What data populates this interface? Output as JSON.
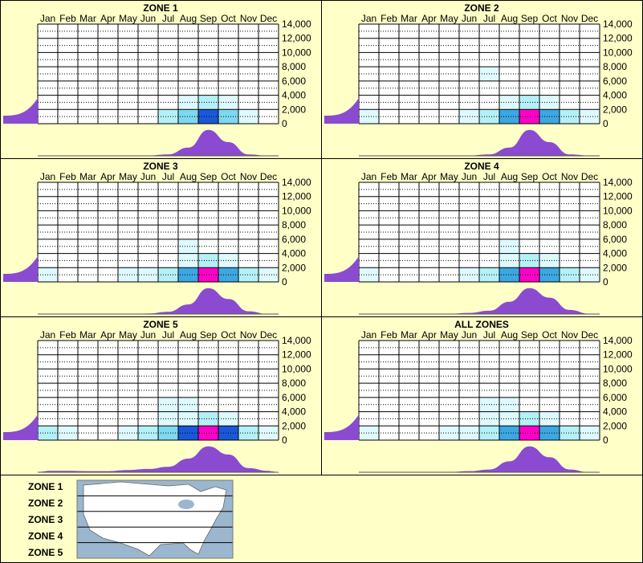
{
  "colors": {
    "background": "#ffffc8",
    "marginal": "#8a4bd0",
    "panel_border": "#000000",
    "scale": [
      "#ffffc8",
      "#dffaff",
      "#b4f0f8",
      "#7ed8ef",
      "#3ca7e0",
      "#1a58d8",
      "#0a1eb8",
      "#ff00c8"
    ]
  },
  "chart_data": {
    "type": "heatmap",
    "months": [
      "Jan",
      "Feb",
      "Mar",
      "Apr",
      "May",
      "Jun",
      "Jul",
      "Aug",
      "Sep",
      "Oct",
      "Nov",
      "Dec"
    ],
    "y_ticks": [
      "14,000",
      "12,000",
      "10,000",
      "8,000",
      "6,000",
      "4,000",
      "2,000",
      "0"
    ],
    "ylim": [
      0,
      14000
    ],
    "panels": [
      {
        "title": "ZONE 1",
        "cells": [
          {
            "month": "Jul",
            "y": [
              0,
              2000
            ],
            "level": 2
          },
          {
            "month": "Aug",
            "y": [
              0,
              2000
            ],
            "level": 3
          },
          {
            "month": "Aug",
            "y": [
              2000,
              4000
            ],
            "level": 1
          },
          {
            "month": "Sep",
            "y": [
              0,
              2000
            ],
            "level": 5
          },
          {
            "month": "Sep",
            "y": [
              2000,
              4000
            ],
            "level": 2
          },
          {
            "month": "Oct",
            "y": [
              0,
              2000
            ],
            "level": 3
          },
          {
            "month": "Oct",
            "y": [
              2000,
              4000
            ],
            "level": 1
          },
          {
            "month": "Nov",
            "y": [
              0,
              2000
            ],
            "level": 1
          }
        ],
        "month_profile": [
          0.0,
          0.0,
          0.0,
          0.0,
          0.0,
          0.01,
          0.05,
          0.3,
          0.95,
          0.5,
          0.05,
          0.0
        ],
        "elev_profile": [
          0.4,
          0.2,
          0.05,
          0.0,
          0.0,
          0.0,
          0.0,
          0.0
        ]
      },
      {
        "title": "ZONE 2",
        "cells": [
          {
            "month": "Jan",
            "y": [
              0,
              2000
            ],
            "level": 1
          },
          {
            "month": "Jun",
            "y": [
              0,
              2000
            ],
            "level": 1
          },
          {
            "month": "Jul",
            "y": [
              0,
              2000
            ],
            "level": 2
          },
          {
            "month": "Jul",
            "y": [
              6000,
              8000
            ],
            "level": 1
          },
          {
            "month": "Aug",
            "y": [
              0,
              2000
            ],
            "level": 4
          },
          {
            "month": "Aug",
            "y": [
              2000,
              4000
            ],
            "level": 1
          },
          {
            "month": "Sep",
            "y": [
              0,
              2000
            ],
            "level": 7
          },
          {
            "month": "Sep",
            "y": [
              2000,
              4000
            ],
            "level": 2
          },
          {
            "month": "Oct",
            "y": [
              0,
              2000
            ],
            "level": 4
          },
          {
            "month": "Oct",
            "y": [
              2000,
              4000
            ],
            "level": 1
          },
          {
            "month": "Nov",
            "y": [
              0,
              2000
            ],
            "level": 2
          },
          {
            "month": "Dec",
            "y": [
              0,
              2000
            ],
            "level": 1
          }
        ],
        "month_profile": [
          0.0,
          0.0,
          0.0,
          0.0,
          0.0,
          0.01,
          0.05,
          0.3,
          0.95,
          0.5,
          0.05,
          0.01
        ],
        "elev_profile": [
          0.45,
          0.2,
          0.05,
          0.0,
          0.0,
          0.0,
          0.0,
          0.0
        ]
      },
      {
        "title": "ZONE 3",
        "cells": [
          {
            "month": "Jan",
            "y": [
              0,
              2000
            ],
            "level": 1
          },
          {
            "month": "May",
            "y": [
              0,
              2000
            ],
            "level": 1
          },
          {
            "month": "Jun",
            "y": [
              0,
              2000
            ],
            "level": 1
          },
          {
            "month": "Jul",
            "y": [
              0,
              2000
            ],
            "level": 2
          },
          {
            "month": "Aug",
            "y": [
              0,
              2000
            ],
            "level": 4
          },
          {
            "month": "Aug",
            "y": [
              2000,
              6000
            ],
            "level": 1
          },
          {
            "month": "Sep",
            "y": [
              0,
              2000
            ],
            "level": 7
          },
          {
            "month": "Sep",
            "y": [
              2000,
              4000
            ],
            "level": 2
          },
          {
            "month": "Oct",
            "y": [
              0,
              2000
            ],
            "level": 4
          },
          {
            "month": "Oct",
            "y": [
              2000,
              4000
            ],
            "level": 1
          },
          {
            "month": "Nov",
            "y": [
              0,
              2000
            ],
            "level": 2
          },
          {
            "month": "Dec",
            "y": [
              0,
              2000
            ],
            "level": 1
          }
        ],
        "month_profile": [
          0.0,
          0.0,
          0.0,
          0.0,
          0.0,
          0.02,
          0.08,
          0.35,
          0.95,
          0.55,
          0.1,
          0.0
        ],
        "elev_profile": [
          0.4,
          0.2,
          0.06,
          0.02,
          0.0,
          0.0,
          0.0,
          0.0
        ]
      },
      {
        "title": "ZONE 4",
        "cells": [
          {
            "month": "Jan",
            "y": [
              0,
              2000
            ],
            "level": 1
          },
          {
            "month": "Jun",
            "y": [
              0,
              2000
            ],
            "level": 1
          },
          {
            "month": "Jul",
            "y": [
              0,
              2000
            ],
            "level": 2
          },
          {
            "month": "Aug",
            "y": [
              0,
              2000
            ],
            "level": 4
          },
          {
            "month": "Aug",
            "y": [
              2000,
              6000
            ],
            "level": 1
          },
          {
            "month": "Sep",
            "y": [
              0,
              2000
            ],
            "level": 7
          },
          {
            "month": "Sep",
            "y": [
              2000,
              4000
            ],
            "level": 2
          },
          {
            "month": "Oct",
            "y": [
              0,
              2000
            ],
            "level": 4
          },
          {
            "month": "Oct",
            "y": [
              2000,
              4000
            ],
            "level": 1
          },
          {
            "month": "Nov",
            "y": [
              0,
              2000
            ],
            "level": 2
          },
          {
            "month": "Dec",
            "y": [
              0,
              2000
            ],
            "level": 1
          }
        ],
        "month_profile": [
          0.0,
          0.0,
          0.0,
          0.0,
          0.01,
          0.04,
          0.12,
          0.45,
          0.95,
          0.6,
          0.15,
          0.01
        ],
        "elev_profile": [
          0.42,
          0.2,
          0.06,
          0.01,
          0.0,
          0.0,
          0.0,
          0.0
        ]
      },
      {
        "title": "ZONE 5",
        "cells": [
          {
            "month": "Jan",
            "y": [
              0,
              2000
            ],
            "level": 2
          },
          {
            "month": "Feb",
            "y": [
              0,
              2000
            ],
            "level": 1
          },
          {
            "month": "May",
            "y": [
              0,
              2000
            ],
            "level": 1
          },
          {
            "month": "Jun",
            "y": [
              0,
              2000
            ],
            "level": 2
          },
          {
            "month": "Jul",
            "y": [
              0,
              2000
            ],
            "level": 3
          },
          {
            "month": "Jul",
            "y": [
              2000,
              6000
            ],
            "level": 1
          },
          {
            "month": "Aug",
            "y": [
              0,
              2000
            ],
            "level": 5
          },
          {
            "month": "Aug",
            "y": [
              2000,
              6000
            ],
            "level": 1
          },
          {
            "month": "Sep",
            "y": [
              0,
              2000
            ],
            "level": 7
          },
          {
            "month": "Sep",
            "y": [
              2000,
              4000
            ],
            "level": 2
          },
          {
            "month": "Oct",
            "y": [
              0,
              2000
            ],
            "level": 5
          },
          {
            "month": "Oct",
            "y": [
              2000,
              4000
            ],
            "level": 1
          },
          {
            "month": "Nov",
            "y": [
              0,
              2000
            ],
            "level": 2
          },
          {
            "month": "Dec",
            "y": [
              0,
              2000
            ],
            "level": 1
          }
        ],
        "month_profile": [
          0.05,
          0.05,
          0.04,
          0.04,
          0.08,
          0.12,
          0.2,
          0.5,
          0.95,
          0.65,
          0.15,
          0.05
        ],
        "elev_profile": [
          0.45,
          0.2,
          0.06,
          0.02,
          0.0,
          0.0,
          0.0,
          0.0
        ]
      },
      {
        "title": "ALL ZONES",
        "cells": [
          {
            "month": "Jan",
            "y": [
              0,
              2000
            ],
            "level": 1
          },
          {
            "month": "May",
            "y": [
              0,
              2000
            ],
            "level": 1
          },
          {
            "month": "Jun",
            "y": [
              0,
              2000
            ],
            "level": 1
          },
          {
            "month": "Jul",
            "y": [
              0,
              2000
            ],
            "level": 2
          },
          {
            "month": "Jul",
            "y": [
              2000,
              6000
            ],
            "level": 1
          },
          {
            "month": "Aug",
            "y": [
              0,
              2000
            ],
            "level": 4
          },
          {
            "month": "Aug",
            "y": [
              2000,
              6000
            ],
            "level": 1
          },
          {
            "month": "Sep",
            "y": [
              0,
              2000
            ],
            "level": 7
          },
          {
            "month": "Sep",
            "y": [
              2000,
              4000
            ],
            "level": 2
          },
          {
            "month": "Oct",
            "y": [
              0,
              2000
            ],
            "level": 4
          },
          {
            "month": "Oct",
            "y": [
              2000,
              4000
            ],
            "level": 1
          },
          {
            "month": "Nov",
            "y": [
              0,
              2000
            ],
            "level": 2
          },
          {
            "month": "Dec",
            "y": [
              0,
              2000
            ],
            "level": 1
          }
        ],
        "month_profile": [
          0.0,
          0.0,
          0.0,
          0.0,
          0.01,
          0.04,
          0.1,
          0.4,
          0.95,
          0.55,
          0.1,
          0.0
        ],
        "elev_profile": [
          0.42,
          0.2,
          0.06,
          0.01,
          0.0,
          0.0,
          0.0,
          0.0
        ]
      }
    ]
  },
  "legend": {
    "zones": [
      "ZONE 1",
      "ZONE 2",
      "ZONE 3",
      "ZONE 4",
      "ZONE 5"
    ],
    "map_icon": "us-map-icon"
  }
}
